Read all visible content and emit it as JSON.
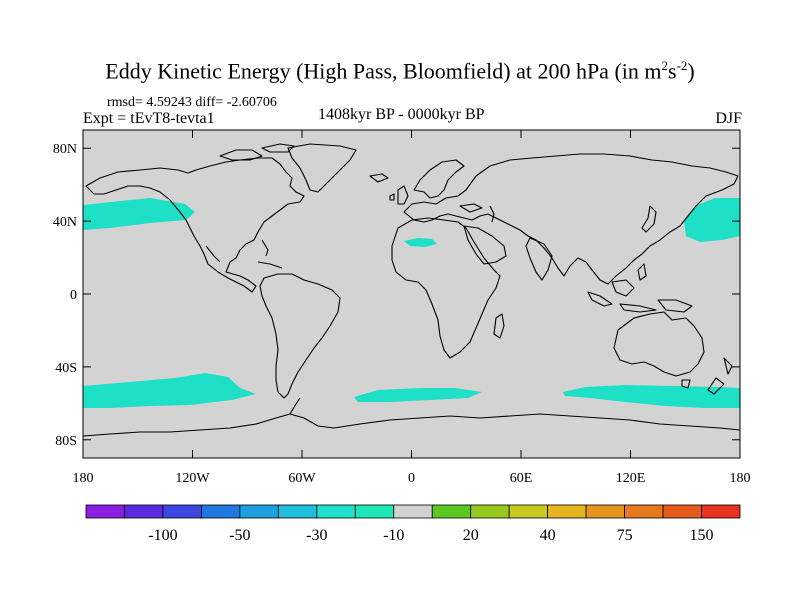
{
  "title": {
    "main": "Eddy Kinetic Energy (High Pass, Bloomfield) at 200 hPa (in m",
    "sup1": "2",
    "mid": "s",
    "sup2": "-2",
    "end": ")"
  },
  "stats": "rmsd= 4.59243 diff= -2.60706",
  "experiment": "Expt = tEvT8-tevta1",
  "period": "1408kyr BP - 0000kyr BP",
  "season": "DJF",
  "lat_ticks": [
    "80N",
    "40N",
    "0",
    "40S",
    "80S"
  ],
  "lon_ticks": [
    "180",
    "120W",
    "60W",
    "0",
    "60E",
    "120E",
    "180"
  ],
  "colorbar": {
    "labels": [
      "-100",
      "-50",
      "-30",
      "-10",
      "20",
      "40",
      "75",
      "150"
    ],
    "colors": [
      "#8a1ee0",
      "#5a2ae0",
      "#3c46e0",
      "#1e78e0",
      "#1ea0e0",
      "#1ebedc",
      "#1ee0cc",
      "#1ee6b4",
      "#d2d2d2",
      "#5ac81e",
      "#96c81e",
      "#c8c81e",
      "#e6b41e",
      "#e6961e",
      "#e6781e",
      "#e65a1e",
      "#e6321e"
    ]
  },
  "map": {
    "background": "#d3d3d3",
    "anomaly_color": "#1ee0c6",
    "coast_color": "#000000"
  }
}
